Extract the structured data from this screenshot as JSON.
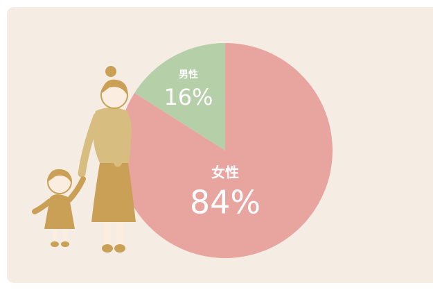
{
  "chart_data": {
    "type": "pie",
    "categories": [
      "男性",
      "女性"
    ],
    "values": [
      16,
      84
    ],
    "value_labels": [
      "16%",
      "84%"
    ],
    "colors": [
      "#b5d0a8",
      "#e8a5a0"
    ]
  }
}
